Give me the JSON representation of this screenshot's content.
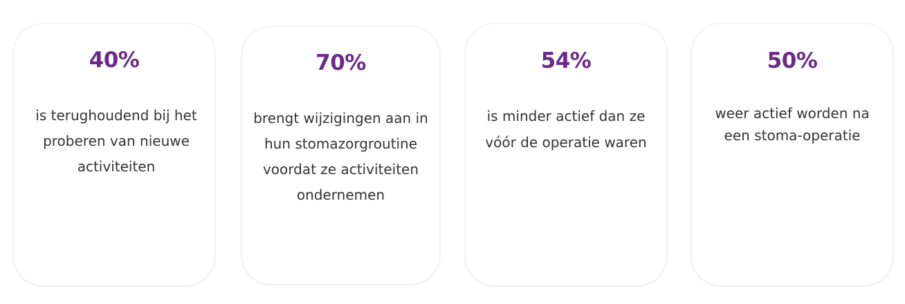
{
  "colors": {
    "accent": "#6b2a8a",
    "text": "#333333",
    "card_background": "#ffffff"
  },
  "cards": [
    {
      "stat": "40%",
      "description": "is terughoudend bij het proberen van nieuwe activiteiten"
    },
    {
      "stat": "70%",
      "description": "brengt wijzigingen aan in hun stomazorgroutine voordat ze activiteiten ondernemen"
    },
    {
      "stat": "54%",
      "description": "is minder actief dan ze vóór de operatie waren"
    },
    {
      "stat": "50%",
      "description": "weer actief worden na een stoma-operatie"
    }
  ]
}
